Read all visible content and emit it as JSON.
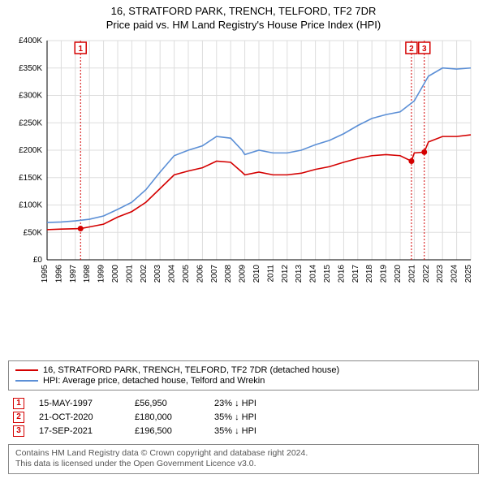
{
  "title": {
    "line1": "16, STRATFORD PARK, TRENCH, TELFORD, TF2 7DR",
    "line2": "Price paid vs. HM Land Registry's House Price Index (HPI)"
  },
  "chart": {
    "type": "line",
    "background_color": "#ffffff",
    "grid_color": "#dddddd",
    "axis_color": "#000000",
    "tick_fontsize": 10,
    "x": {
      "min": 1995,
      "max": 2025,
      "step": 1
    },
    "y": {
      "min": 0,
      "max": 400000,
      "step": 50000,
      "labels": [
        "£0",
        "£50K",
        "£100K",
        "£150K",
        "£200K",
        "£250K",
        "£300K",
        "£350K",
        "£400K"
      ]
    },
    "series": [
      {
        "name": "price_paid",
        "color": "#d40000",
        "width": 1.6,
        "points": [
          [
            1995,
            55000
          ],
          [
            1996,
            56000
          ],
          [
            1997.37,
            56950
          ],
          [
            1998,
            60000
          ],
          [
            1999,
            65000
          ],
          [
            2000,
            78000
          ],
          [
            2001,
            88000
          ],
          [
            2002,
            105000
          ],
          [
            2003,
            130000
          ],
          [
            2004,
            155000
          ],
          [
            2005,
            162000
          ],
          [
            2006,
            168000
          ],
          [
            2007,
            180000
          ],
          [
            2008,
            178000
          ],
          [
            2008.8,
            160000
          ],
          [
            2009,
            155000
          ],
          [
            2010,
            160000
          ],
          [
            2011,
            155000
          ],
          [
            2012,
            155000
          ],
          [
            2013,
            158000
          ],
          [
            2014,
            165000
          ],
          [
            2015,
            170000
          ],
          [
            2016,
            178000
          ],
          [
            2017,
            185000
          ],
          [
            2018,
            190000
          ],
          [
            2019,
            192000
          ],
          [
            2020,
            190000
          ],
          [
            2020.8,
            180000
          ],
          [
            2021,
            195000
          ],
          [
            2021.71,
            196500
          ],
          [
            2022,
            215000
          ],
          [
            2023,
            225000
          ],
          [
            2024,
            225000
          ],
          [
            2025,
            228000
          ]
        ]
      },
      {
        "name": "hpi",
        "color": "#5b8fd6",
        "width": 1.6,
        "points": [
          [
            1995,
            68000
          ],
          [
            1996,
            69000
          ],
          [
            1997,
            71000
          ],
          [
            1998,
            74000
          ],
          [
            1999,
            80000
          ],
          [
            2000,
            92000
          ],
          [
            2001,
            105000
          ],
          [
            2002,
            128000
          ],
          [
            2003,
            160000
          ],
          [
            2004,
            190000
          ],
          [
            2005,
            200000
          ],
          [
            2006,
            208000
          ],
          [
            2007,
            225000
          ],
          [
            2008,
            222000
          ],
          [
            2008.8,
            200000
          ],
          [
            2009,
            192000
          ],
          [
            2010,
            200000
          ],
          [
            2011,
            195000
          ],
          [
            2012,
            195000
          ],
          [
            2013,
            200000
          ],
          [
            2014,
            210000
          ],
          [
            2015,
            218000
          ],
          [
            2016,
            230000
          ],
          [
            2017,
            245000
          ],
          [
            2018,
            258000
          ],
          [
            2019,
            265000
          ],
          [
            2020,
            270000
          ],
          [
            2021,
            290000
          ],
          [
            2022,
            335000
          ],
          [
            2023,
            350000
          ],
          [
            2024,
            348000
          ],
          [
            2025,
            350000
          ]
        ]
      }
    ],
    "markers": [
      {
        "n": "1",
        "x": 1997.37,
        "y": 56950,
        "color": "#d40000"
      },
      {
        "n": "2",
        "x": 2020.8,
        "y": 180000,
        "color": "#d40000"
      },
      {
        "n": "3",
        "x": 2021.71,
        "y": 196500,
        "color": "#d40000"
      }
    ],
    "marker_dot_color": "#d40000",
    "marker_box_fill": "#ffffff",
    "marker_vline_dash": "2,2"
  },
  "legend": {
    "items": [
      {
        "color": "#d40000",
        "label": "16, STRATFORD PARK, TRENCH, TELFORD, TF2 7DR (detached house)"
      },
      {
        "color": "#5b8fd6",
        "label": "HPI: Average price, detached house, Telford and Wrekin"
      }
    ]
  },
  "events": [
    {
      "n": "1",
      "color": "#d40000",
      "date": "15-MAY-1997",
      "price": "£56,950",
      "pct": "23% ↓ HPI"
    },
    {
      "n": "2",
      "color": "#d40000",
      "date": "21-OCT-2020",
      "price": "£180,000",
      "pct": "35% ↓ HPI"
    },
    {
      "n": "3",
      "color": "#d40000",
      "date": "17-SEP-2021",
      "price": "£196,500",
      "pct": "35% ↓ HPI"
    }
  ],
  "footer": {
    "line1": "Contains HM Land Registry data © Crown copyright and database right 2024.",
    "line2": "This data is licensed under the Open Government Licence v3.0."
  }
}
